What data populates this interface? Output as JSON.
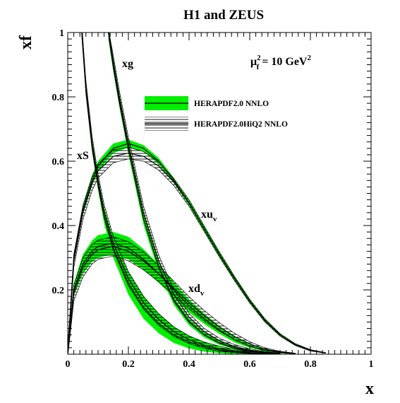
{
  "chart_data": {
    "type": "line",
    "title": "H1 and ZEUS",
    "xlabel": "x",
    "ylabel": "xf",
    "xlim": [
      0,
      1
    ],
    "ylim": [
      0,
      1
    ],
    "grid": false,
    "legend_position": "top-right",
    "x_ticks": [
      "0",
      "0.2",
      "0.4",
      "0.6",
      "0.8",
      "1"
    ],
    "y_ticks": [
      "0.2",
      "0.4",
      "0.6",
      "0.8",
      "1"
    ],
    "scale_annotation": {
      "base": "μ",
      "sup": "2",
      "sub": "f",
      "rest": " = 10 GeV",
      "rest_sup": "2"
    },
    "series_labels": [
      {
        "base": "xg",
        "sub": ""
      },
      {
        "base": "xS",
        "sub": ""
      },
      {
        "base": "xu",
        "sub": "v"
      },
      {
        "base": "xd",
        "sub": "v"
      }
    ],
    "legend": [
      {
        "label": "HERAPDF2.0 NNLO",
        "style": "green-band",
        "color": "#00ee00"
      },
      {
        "label": "HERAPDF2.0HiQ2 NNLO",
        "style": "hatched-band",
        "color": "#000000"
      }
    ],
    "curves": [
      {
        "pdf": "xuv",
        "set": "HERAPDF2.0 NNLO",
        "x": [
          0.001,
          0.02,
          0.05,
          0.08,
          0.1,
          0.15,
          0.2,
          0.25,
          0.3,
          0.35,
          0.4,
          0.45,
          0.5,
          0.55,
          0.6,
          0.65,
          0.7,
          0.75,
          0.8,
          0.85
        ],
        "central": [
          0.02,
          0.3,
          0.45,
          0.54,
          0.585,
          0.64,
          0.655,
          0.64,
          0.6,
          0.54,
          0.47,
          0.39,
          0.31,
          0.235,
          0.165,
          0.105,
          0.06,
          0.03,
          0.012,
          0.004
        ],
        "band": [
          0.01,
          0.015,
          0.015,
          0.015,
          0.015,
          0.015,
          0.012,
          0.01,
          0.01,
          0.008,
          0.008,
          0.008,
          0.008,
          0.006,
          0.006,
          0.005,
          0.004,
          0.003,
          0.002,
          0.001
        ]
      },
      {
        "pdf": "xuv",
        "set": "HERAPDF2.0HiQ2 NNLO",
        "x": [
          0.001,
          0.02,
          0.05,
          0.08,
          0.1,
          0.15,
          0.2,
          0.25,
          0.3,
          0.35,
          0.4,
          0.45,
          0.5,
          0.55,
          0.6,
          0.65,
          0.7,
          0.75,
          0.8,
          0.85
        ],
        "central": [
          0.02,
          0.29,
          0.44,
          0.53,
          0.57,
          0.615,
          0.625,
          0.615,
          0.585,
          0.535,
          0.47,
          0.39,
          0.31,
          0.235,
          0.165,
          0.105,
          0.06,
          0.03,
          0.012,
          0.004
        ],
        "band": [
          0.012,
          0.02,
          0.022,
          0.022,
          0.022,
          0.02,
          0.018,
          0.015,
          0.013,
          0.011,
          0.01,
          0.009,
          0.008,
          0.007,
          0.006,
          0.005,
          0.004,
          0.003,
          0.002,
          0.001
        ]
      },
      {
        "pdf": "xdv",
        "set": "HERAPDF2.0 NNLO",
        "x": [
          0.001,
          0.02,
          0.05,
          0.08,
          0.1,
          0.15,
          0.2,
          0.25,
          0.3,
          0.35,
          0.4,
          0.45,
          0.5,
          0.55,
          0.6,
          0.65,
          0.7,
          0.75
        ],
        "central": [
          0.01,
          0.2,
          0.28,
          0.32,
          0.335,
          0.345,
          0.33,
          0.295,
          0.25,
          0.2,
          0.15,
          0.11,
          0.075,
          0.045,
          0.025,
          0.012,
          0.005,
          0.002
        ],
        "band": [
          0.008,
          0.02,
          0.03,
          0.033,
          0.035,
          0.035,
          0.035,
          0.032,
          0.028,
          0.024,
          0.02,
          0.016,
          0.012,
          0.008,
          0.005,
          0.003,
          0.002,
          0.001
        ]
      },
      {
        "pdf": "xdv",
        "set": "HERAPDF2.0HiQ2 NNLO",
        "x": [
          0.001,
          0.02,
          0.05,
          0.08,
          0.1,
          0.15,
          0.2,
          0.25,
          0.3,
          0.35,
          0.4,
          0.45,
          0.5,
          0.55,
          0.6,
          0.65,
          0.7,
          0.75
        ],
        "central": [
          0.01,
          0.19,
          0.27,
          0.31,
          0.325,
          0.335,
          0.32,
          0.29,
          0.25,
          0.205,
          0.16,
          0.12,
          0.085,
          0.055,
          0.032,
          0.016,
          0.007,
          0.002
        ],
        "band": [
          0.01,
          0.025,
          0.03,
          0.03,
          0.03,
          0.03,
          0.03,
          0.028,
          0.025,
          0.022,
          0.019,
          0.016,
          0.013,
          0.01,
          0.007,
          0.004,
          0.002,
          0.001
        ]
      },
      {
        "pdf": "xg",
        "set": "HERAPDF2.0 NNLO",
        "x": [
          0.134,
          0.15,
          0.17,
          0.2,
          0.25,
          0.3,
          0.35,
          0.4,
          0.45,
          0.5,
          0.55,
          0.6,
          0.65,
          0.7
        ],
        "central": [
          1.0,
          0.9,
          0.79,
          0.64,
          0.42,
          0.27,
          0.165,
          0.1,
          0.06,
          0.035,
          0.02,
          0.01,
          0.005,
          0.002
        ],
        "band": [
          0.02,
          0.02,
          0.02,
          0.02,
          0.018,
          0.015,
          0.012,
          0.01,
          0.008,
          0.006,
          0.004,
          0.003,
          0.002,
          0.001
        ]
      },
      {
        "pdf": "xg",
        "set": "HERAPDF2.0HiQ2 NNLO",
        "x": [
          0.136,
          0.15,
          0.17,
          0.2,
          0.25,
          0.3,
          0.35,
          0.4,
          0.45,
          0.5,
          0.55,
          0.6,
          0.65,
          0.7
        ],
        "central": [
          1.0,
          0.91,
          0.8,
          0.655,
          0.44,
          0.29,
          0.185,
          0.115,
          0.07,
          0.042,
          0.024,
          0.013,
          0.006,
          0.002
        ],
        "band": [
          0.02,
          0.02,
          0.02,
          0.02,
          0.02,
          0.018,
          0.015,
          0.012,
          0.01,
          0.008,
          0.006,
          0.004,
          0.002,
          0.001
        ]
      },
      {
        "pdf": "xS",
        "set": "HERAPDF2.0 NNLO",
        "x": [
          0.046,
          0.06,
          0.08,
          0.1,
          0.12,
          0.15,
          0.2,
          0.25,
          0.3,
          0.35,
          0.4,
          0.45,
          0.5,
          0.55,
          0.6,
          0.65,
          0.7
        ],
        "central": [
          1.0,
          0.82,
          0.65,
          0.53,
          0.43,
          0.33,
          0.22,
          0.145,
          0.095,
          0.06,
          0.038,
          0.023,
          0.013,
          0.007,
          0.004,
          0.002,
          0.001
        ],
        "band": [
          0.02,
          0.02,
          0.02,
          0.02,
          0.025,
          0.03,
          0.035,
          0.035,
          0.03,
          0.025,
          0.02,
          0.015,
          0.01,
          0.007,
          0.004,
          0.002,
          0.001
        ]
      },
      {
        "pdf": "xS",
        "set": "HERAPDF2.0HiQ2 NNLO",
        "x": [
          0.048,
          0.06,
          0.08,
          0.1,
          0.12,
          0.15,
          0.2,
          0.25,
          0.3,
          0.35,
          0.4,
          0.45,
          0.5,
          0.55,
          0.6,
          0.65,
          0.7
        ],
        "central": [
          1.0,
          0.83,
          0.66,
          0.54,
          0.445,
          0.345,
          0.235,
          0.16,
          0.108,
          0.07,
          0.045,
          0.028,
          0.017,
          0.01,
          0.005,
          0.002,
          0.001
        ],
        "band": [
          0.02,
          0.02,
          0.02,
          0.02,
          0.02,
          0.022,
          0.022,
          0.02,
          0.018,
          0.015,
          0.012,
          0.01,
          0.008,
          0.005,
          0.003,
          0.002,
          0.001
        ]
      }
    ]
  }
}
